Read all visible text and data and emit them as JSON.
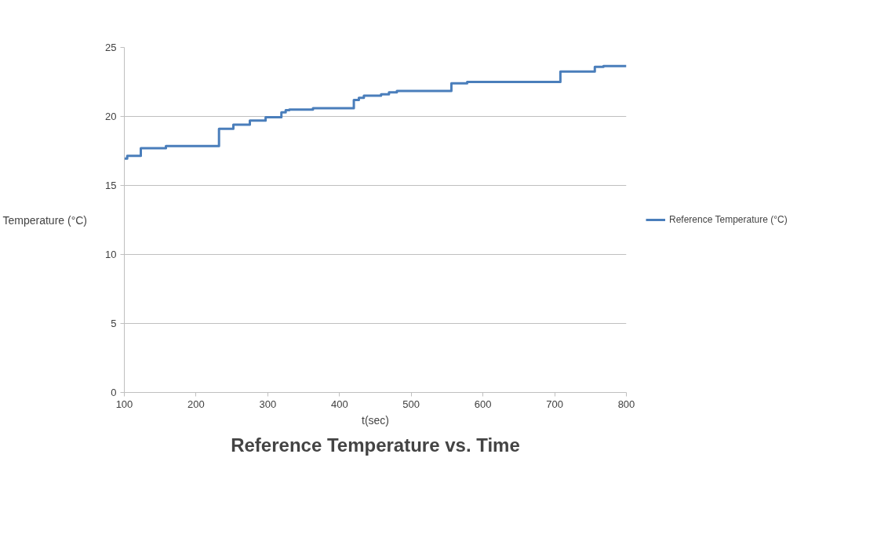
{
  "chart_data": {
    "type": "step",
    "title": "Reference Temperature vs. Time",
    "xlabel": "t(sec)",
    "ylabel": "Temperature (°C)",
    "x": [
      100,
      104,
      123,
      158,
      232,
      252,
      275,
      297,
      319,
      325,
      330,
      363,
      420,
      427,
      434,
      458,
      469,
      480,
      556,
      578,
      708,
      756,
      768,
      800
    ],
    "series": [
      {
        "name": "Reference Temperature (°C)",
        "color": "#4a7ebb",
        "values": [
          16.95,
          17.15,
          17.7,
          17.85,
          19.1,
          19.4,
          19.7,
          19.95,
          20.3,
          20.45,
          20.5,
          20.6,
          21.2,
          21.35,
          21.5,
          21.6,
          21.75,
          21.85,
          22.4,
          22.5,
          23.25,
          23.6,
          23.65,
          23.65
        ]
      }
    ],
    "xlim": [
      100,
      800
    ],
    "xticks": [
      100,
      200,
      300,
      400,
      500,
      600,
      700,
      800
    ],
    "ylim": [
      0,
      25
    ],
    "yticks": [
      0,
      5,
      10,
      15,
      20,
      25
    ],
    "grid": "y",
    "legend": "right",
    "line_style": "solid",
    "marker": "none"
  }
}
